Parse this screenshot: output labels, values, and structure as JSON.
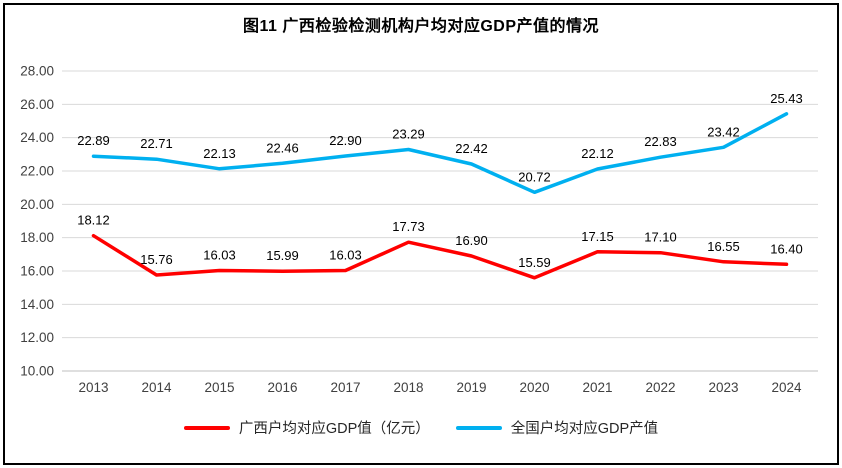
{
  "chart_data": {
    "type": "line",
    "title": "图11 广西检验检测机构户均对应GDP产值的情况",
    "categories": [
      "2013",
      "2014",
      "2015",
      "2016",
      "2017",
      "2018",
      "2019",
      "2020",
      "2021",
      "2022",
      "2023",
      "2024"
    ],
    "series": [
      {
        "name": "广西户均对应GDP值（亿元）",
        "color": "#FF0000",
        "values": [
          18.12,
          15.76,
          16.03,
          15.99,
          16.03,
          17.73,
          16.9,
          15.59,
          17.15,
          17.1,
          16.55,
          16.4
        ]
      },
      {
        "name": "全国户均对应GDP产值",
        "color": "#00B0F0",
        "values": [
          22.89,
          22.71,
          22.13,
          22.46,
          22.9,
          23.29,
          22.42,
          20.72,
          22.12,
          22.83,
          23.42,
          25.43
        ]
      }
    ],
    "ylim": [
      10,
      28
    ],
    "ytick_step": 2,
    "ytick_format_decimals": 2,
    "grid": true,
    "gridline_color": "#D9D9D9",
    "axis_line_color": "#BFBFBF",
    "legend_position": "bottom",
    "data_labels": true
  }
}
